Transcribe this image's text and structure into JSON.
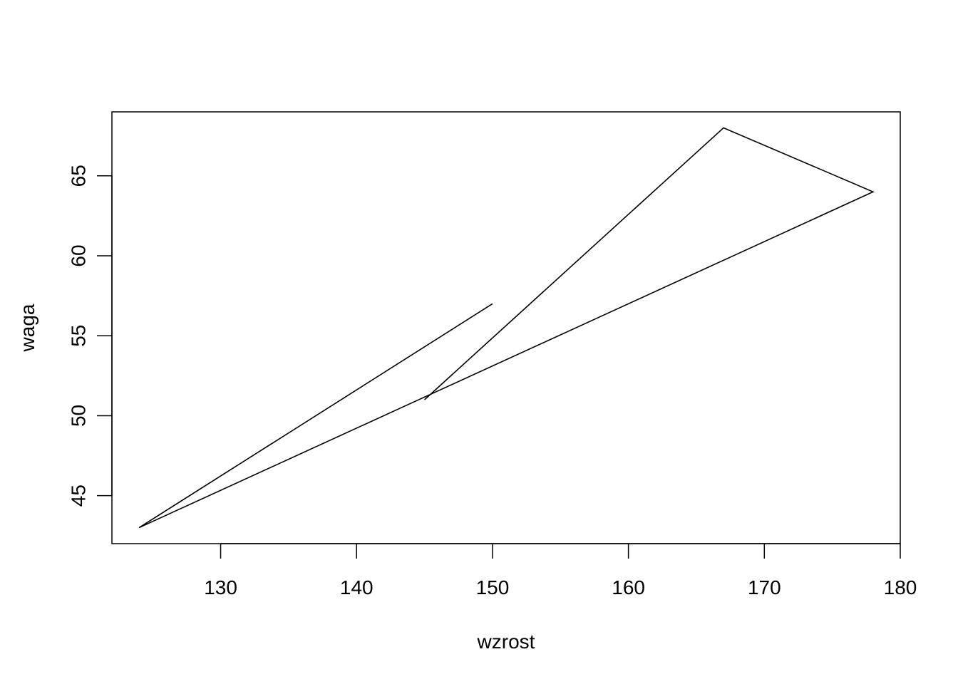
{
  "chart_data": {
    "type": "line",
    "xlabel": "wzrost",
    "ylabel": "waga",
    "xlim": [
      122,
      180
    ],
    "ylim": [
      42,
      69
    ],
    "x_ticks": [
      130,
      140,
      150,
      160,
      170,
      180
    ],
    "y_ticks": [
      45,
      50,
      55,
      60,
      65
    ],
    "series": [
      {
        "x": [
          150,
          124,
          178,
          167,
          145
        ],
        "y": [
          57,
          43,
          64,
          68,
          51
        ]
      }
    ],
    "grid": false,
    "legend": "none"
  }
}
